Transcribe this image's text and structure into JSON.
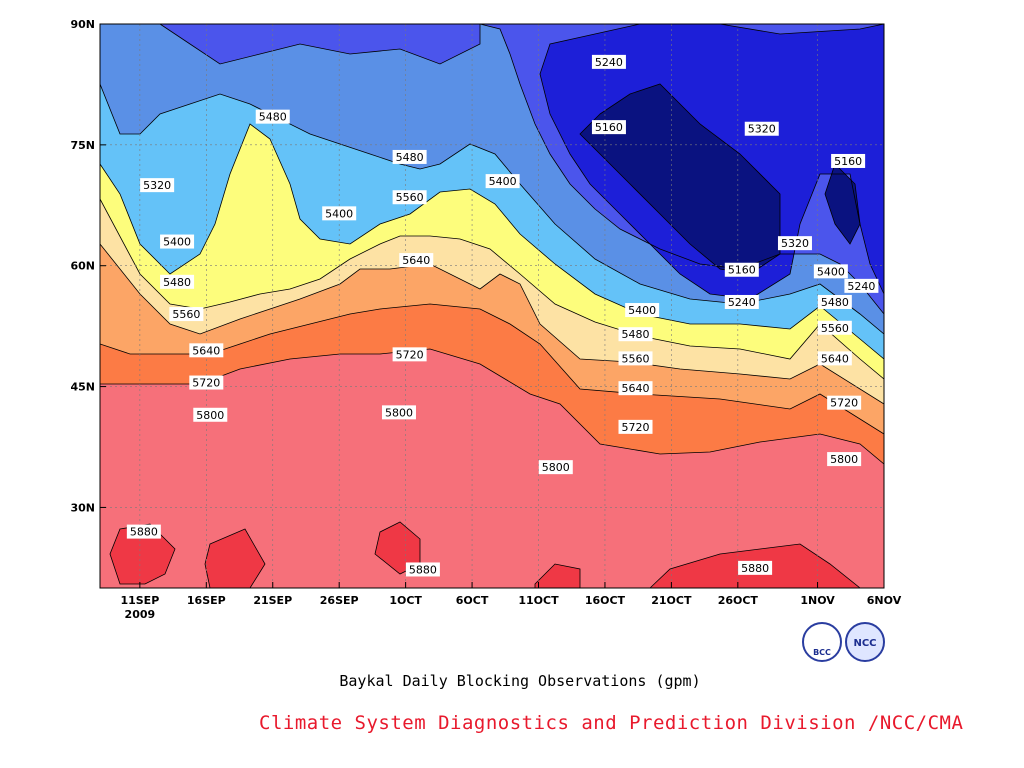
{
  "chart_data": {
    "type": "heatmap",
    "title": "",
    "xlabel": "",
    "ylabel": "",
    "x_ticks": [
      {
        "label": "11SEP",
        "sub": "2009",
        "day": 0
      },
      {
        "label": "16SEP",
        "day": 5
      },
      {
        "label": "21SEP",
        "day": 10
      },
      {
        "label": "26SEP",
        "day": 15
      },
      {
        "label": "1OCT",
        "day": 20
      },
      {
        "label": "6OCT",
        "day": 25
      },
      {
        "label": "11OCT",
        "day": 30
      },
      {
        "label": "16OCT",
        "day": 35
      },
      {
        "label": "21OCT",
        "day": 40
      },
      {
        "label": "26OCT",
        "day": 45
      },
      {
        "label": "1NOV",
        "day": 51
      },
      {
        "label": "6NOV",
        "day": 56
      }
    ],
    "y_ticks": [
      {
        "label": "30N",
        "lat": 30
      },
      {
        "label": "45N",
        "lat": 45
      },
      {
        "label": "60N",
        "lat": 60
      },
      {
        "label": "75N",
        "lat": 75
      },
      {
        "label": "90N",
        "lat": 90
      }
    ],
    "xlim_day": [
      -3,
      56
    ],
    "ylim": [
      20,
      90
    ],
    "grid": true,
    "contour_levels": [
      5160,
      5240,
      5320,
      5400,
      5480,
      5560,
      5640,
      5720,
      5800,
      5880
    ],
    "contour_labels": [
      {
        "value": "5240",
        "day": 35.3,
        "lat": 85.3
      },
      {
        "value": "5160",
        "day": 35.3,
        "lat": 77.2
      },
      {
        "value": "5320",
        "day": 46.8,
        "lat": 77.0
      },
      {
        "value": "5480",
        "day": 10.0,
        "lat": 78.5
      },
      {
        "value": "5480",
        "day": 20.3,
        "lat": 73.5
      },
      {
        "value": "5320",
        "day": 1.3,
        "lat": 70.0
      },
      {
        "value": "5400",
        "day": 27.3,
        "lat": 70.5
      },
      {
        "value": "5560",
        "day": 20.3,
        "lat": 68.5
      },
      {
        "value": "5400",
        "day": 15.0,
        "lat": 66.5
      },
      {
        "value": "5160",
        "day": 53.3,
        "lat": 73.0
      },
      {
        "value": "5320",
        "day": 49.3,
        "lat": 62.8
      },
      {
        "value": "5160",
        "day": 45.3,
        "lat": 59.5
      },
      {
        "value": "5400",
        "day": 2.8,
        "lat": 63.0
      },
      {
        "value": "5640",
        "day": 20.8,
        "lat": 60.7
      },
      {
        "value": "5480",
        "day": 2.8,
        "lat": 58.0
      },
      {
        "value": "5400",
        "day": 52.0,
        "lat": 59.3
      },
      {
        "value": "5240",
        "day": 54.3,
        "lat": 57.5
      },
      {
        "value": "5240",
        "day": 45.3,
        "lat": 55.5
      },
      {
        "value": "5480",
        "day": 52.3,
        "lat": 55.5
      },
      {
        "value": "5400",
        "day": 37.8,
        "lat": 54.5
      },
      {
        "value": "5560",
        "day": 3.5,
        "lat": 54.0
      },
      {
        "value": "5480",
        "day": 37.3,
        "lat": 51.5
      },
      {
        "value": "5560",
        "day": 52.3,
        "lat": 52.3
      },
      {
        "value": "5640",
        "day": 5.0,
        "lat": 49.5
      },
      {
        "value": "5720",
        "day": 20.3,
        "lat": 49.0
      },
      {
        "value": "5560",
        "day": 37.3,
        "lat": 48.5
      },
      {
        "value": "5640",
        "day": 52.3,
        "lat": 48.5
      },
      {
        "value": "5720",
        "day": 5.0,
        "lat": 45.5
      },
      {
        "value": "5640",
        "day": 37.3,
        "lat": 44.8
      },
      {
        "value": "5720",
        "day": 53.0,
        "lat": 43.0
      },
      {
        "value": "5800",
        "day": 5.3,
        "lat": 41.5
      },
      {
        "value": "5800",
        "day": 19.5,
        "lat": 41.8
      },
      {
        "value": "5720",
        "day": 37.3,
        "lat": 40.0
      },
      {
        "value": "5800",
        "day": 53.0,
        "lat": 36.0
      },
      {
        "value": "5800",
        "day": 31.3,
        "lat": 35.0
      },
      {
        "value": "5880",
        "day": 0.3,
        "lat": 27.0
      },
      {
        "value": "5880",
        "day": 21.3,
        "lat": 22.3
      },
      {
        "value": "5880",
        "day": 46.3,
        "lat": 22.5
      }
    ],
    "fill_colors": {
      "lt5160": "#0a1280",
      "b5160": "#1d1fd8",
      "b5240": "#4b55ec",
      "b5320": "#5a90e6",
      "b5400": "#64c2f8",
      "b5480": "#fdfd7c",
      "b5560": "#fde2a4",
      "b5640": "#fca566",
      "b5720": "#fc7b45",
      "b5800": "#f6707a",
      "gt5880": "#ef3845"
    }
  },
  "caption": "Baykal Daily Blocking Observations (gpm)",
  "footer": "Climate System Diagnostics and Prediction Division /NCC/CMA",
  "logos": {
    "left": "BCC",
    "right": "NCC"
  }
}
